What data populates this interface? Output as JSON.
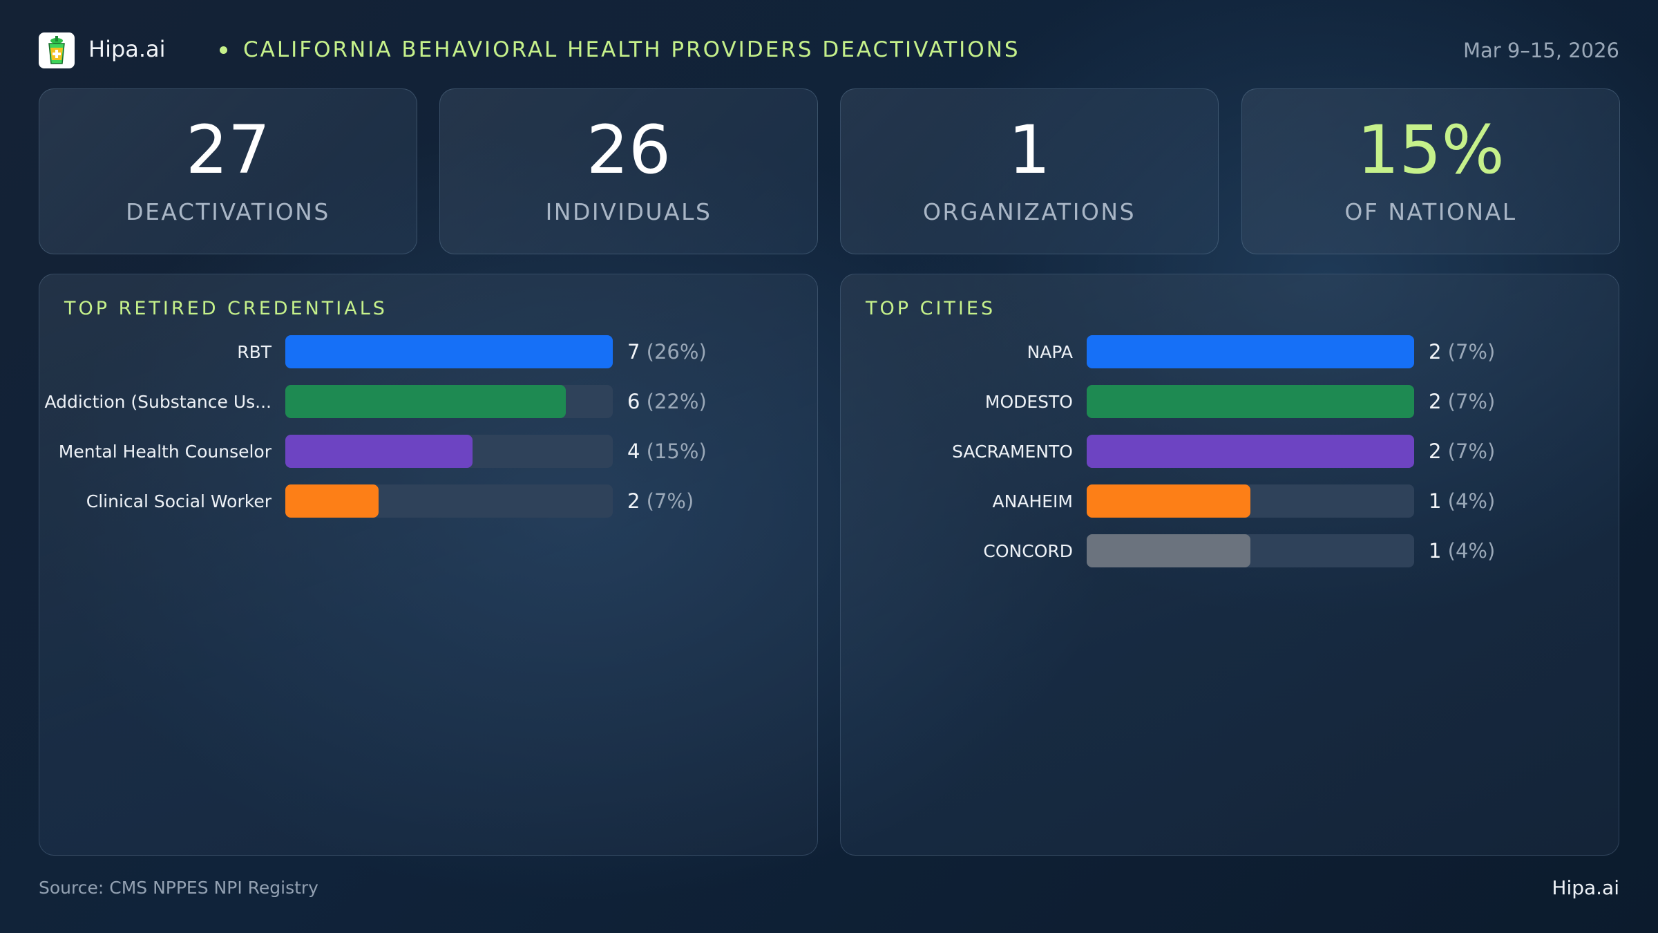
{
  "header": {
    "brand": "Hipa.ai",
    "title": "CALIFORNIA BEHAVIORAL HEALTH PROVIDERS DEACTIVATIONS",
    "date_range": "Mar 9–15, 2026",
    "logo_icon": "medical-cup-icon"
  },
  "kpis": [
    {
      "value": "27",
      "label": "DEACTIVATIONS"
    },
    {
      "value": "26",
      "label": "INDIVIDUALS"
    },
    {
      "value": "1",
      "label": "ORGANIZATIONS"
    },
    {
      "value": "15%",
      "label": "OF NATIONAL",
      "accent": "#c6f18b"
    }
  ],
  "chart_data": [
    {
      "type": "bar",
      "orientation": "horizontal",
      "title": "TOP RETIRED CREDENTIALS",
      "categories": [
        "RBT",
        "Addiction (Substance Us...",
        "Mental Health Counselor",
        "Clinical Social Worker"
      ],
      "values": [
        7,
        6,
        4,
        2
      ],
      "percent_labels": [
        "(26%)",
        "(22%)",
        "(15%)",
        "(7%)"
      ],
      "xlim": [
        0,
        7
      ],
      "colors": [
        "#1670f7",
        "#1e8a52",
        "#6d44c2",
        "#fd7f17"
      ]
    },
    {
      "type": "bar",
      "orientation": "horizontal",
      "title": "TOP CITIES",
      "categories": [
        "NAPA",
        "MODESTO",
        "SACRAMENTO",
        "ANAHEIM",
        "CONCORD"
      ],
      "values": [
        2,
        2,
        2,
        1,
        1
      ],
      "percent_labels": [
        "(7%)",
        "(7%)",
        "(7%)",
        "(4%)",
        "(4%)"
      ],
      "xlim": [
        0,
        2
      ],
      "colors": [
        "#1670f7",
        "#1e8a52",
        "#6d44c2",
        "#fd7f17",
        "#6b737e"
      ]
    }
  ],
  "footer": {
    "source": "Source: CMS NPPES NPI Registry",
    "brand": "Hipa.ai"
  }
}
